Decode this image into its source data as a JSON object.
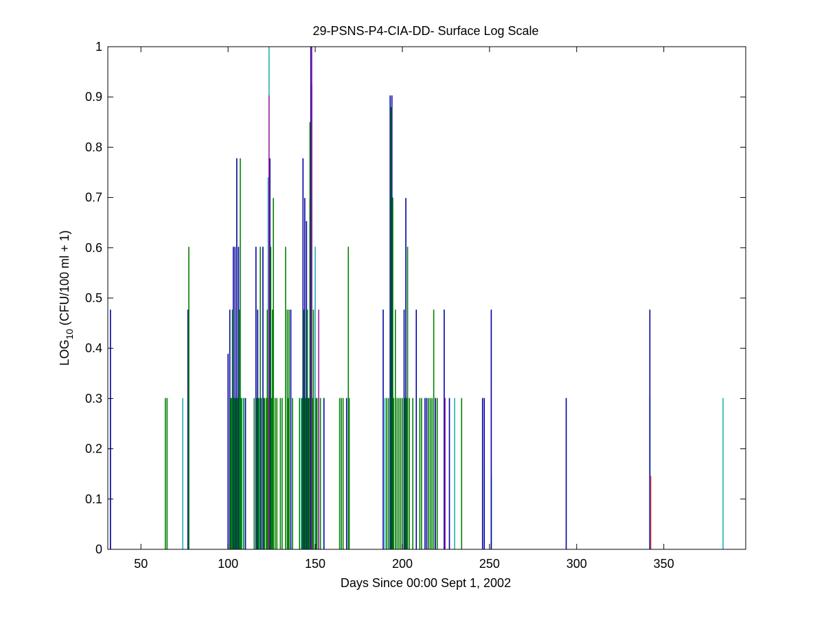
{
  "chart_data": {
    "type": "bar",
    "title": "29-PSNS-P4-CIA-DD- Surface Log Scale",
    "xlabel": "Days Since 00:00 Sept 1, 2002",
    "ylabel_main": "LOG",
    "ylabel_sub": "10",
    "ylabel_rest": " (CFU/100 ml + 1)",
    "xlim": [
      31,
      397
    ],
    "ylim": [
      0,
      1
    ],
    "xticks": [
      50,
      100,
      150,
      200,
      250,
      300,
      350
    ],
    "yticks": [
      0,
      0.1,
      0.2,
      0.3,
      0.4,
      0.5,
      0.6,
      0.7,
      0.8,
      0.9,
      1
    ],
    "grid": false,
    "series": [
      {
        "color": "#20b0b0",
        "points": [
          [
            32.5,
            0.301
          ],
          [
            74,
            0.301
          ],
          [
            104,
            0.477
          ],
          [
            108,
            0.301
          ],
          [
            118,
            0.301
          ],
          [
            123.5,
            1.0
          ],
          [
            123,
            0.74
          ],
          [
            142,
            0.301
          ],
          [
            150,
            0.602
          ],
          [
            190,
            0.301
          ],
          [
            193,
            0.301
          ],
          [
            196,
            0.301
          ],
          [
            230,
            0.301
          ],
          [
            251,
            0.146
          ],
          [
            342,
            0.301
          ],
          [
            384,
            0.301
          ]
        ]
      },
      {
        "color": "#0000a0",
        "points": [
          [
            32.5,
            0.477
          ],
          [
            77,
            0.477
          ],
          [
            100,
            0.389
          ],
          [
            101,
            0.477
          ],
          [
            103,
            0.602
          ],
          [
            104,
            0.602
          ],
          [
            105,
            0.778
          ],
          [
            106,
            0.602
          ],
          [
            110,
            0.301
          ],
          [
            116,
            0.602
          ],
          [
            117,
            0.477
          ],
          [
            119,
            0.301
          ],
          [
            120,
            0.602
          ],
          [
            124,
            0.778
          ],
          [
            136,
            0.477
          ],
          [
            143,
            0.778
          ],
          [
            144,
            0.699
          ],
          [
            145,
            0.653
          ],
          [
            146,
            0.301
          ],
          [
            147,
            0.699
          ],
          [
            147.5,
            1.0
          ],
          [
            148,
            0.924
          ],
          [
            155,
            0.301
          ],
          [
            168,
            0.301
          ],
          [
            189,
            0.477
          ],
          [
            193,
            0.903
          ],
          [
            194,
            0.903
          ],
          [
            201,
            0.477
          ],
          [
            202,
            0.699
          ],
          [
            208,
            0.477
          ],
          [
            213,
            0.301
          ],
          [
            214,
            0.301
          ],
          [
            219,
            0.301
          ],
          [
            224,
            0.477
          ],
          [
            227,
            0.301
          ],
          [
            246,
            0.301
          ],
          [
            247,
            0.301
          ],
          [
            251,
            0.477
          ],
          [
            294,
            0.301
          ],
          [
            342,
            0.477
          ]
        ]
      },
      {
        "color": "#008000",
        "points": [
          [
            64,
            0.301
          ],
          [
            65,
            0.301
          ],
          [
            77.5,
            0.602
          ],
          [
            101.5,
            0.301
          ],
          [
            102,
            0.301
          ],
          [
            102.5,
            0.477
          ],
          [
            103.5,
            0.301
          ],
          [
            104.5,
            0.301
          ],
          [
            105.5,
            0.301
          ],
          [
            106.5,
            0.477
          ],
          [
            107,
            0.778
          ],
          [
            107.5,
            0.301
          ],
          [
            109,
            0.301
          ],
          [
            115,
            0.301
          ],
          [
            116.5,
            0.301
          ],
          [
            117.5,
            0.301
          ],
          [
            118.5,
            0.602
          ],
          [
            120.5,
            0.301
          ],
          [
            121,
            0.301
          ],
          [
            122,
            0.301
          ],
          [
            122.5,
            0.477
          ],
          [
            123,
            0.301
          ],
          [
            124.5,
            0.602
          ],
          [
            125,
            0.301
          ],
          [
            125.5,
            0.477
          ],
          [
            126,
            0.699
          ],
          [
            127,
            0.301
          ],
          [
            128,
            0.301
          ],
          [
            130,
            0.301
          ],
          [
            131,
            0.301
          ],
          [
            133,
            0.602
          ],
          [
            134,
            0.477
          ],
          [
            134.5,
            0.301
          ],
          [
            135,
            0.477
          ],
          [
            137,
            0.301
          ],
          [
            141,
            0.301
          ],
          [
            142.5,
            0.301
          ],
          [
            143.5,
            0.477
          ],
          [
            144.5,
            0.301
          ],
          [
            145.5,
            0.477
          ],
          [
            146.5,
            0.301
          ],
          [
            147,
            0.85
          ],
          [
            148.5,
            0.301
          ],
          [
            149,
            0.477
          ],
          [
            150.5,
            0.301
          ],
          [
            151,
            0.301
          ],
          [
            152,
            0.301
          ],
          [
            153,
            0.301
          ],
          [
            164,
            0.301
          ],
          [
            165,
            0.301
          ],
          [
            166,
            0.301
          ],
          [
            169,
            0.602
          ],
          [
            169.5,
            0.301
          ],
          [
            191,
            0.301
          ],
          [
            192,
            0.301
          ],
          [
            193.5,
            0.88
          ],
          [
            194.5,
            0.7
          ],
          [
            195,
            0.301
          ],
          [
            196,
            0.477
          ],
          [
            197,
            0.301
          ],
          [
            198,
            0.301
          ],
          [
            199,
            0.301
          ],
          [
            200,
            0.301
          ],
          [
            201.5,
            0.301
          ],
          [
            202.5,
            0.301
          ],
          [
            203,
            0.602
          ],
          [
            204,
            0.301
          ],
          [
            206,
            0.301
          ],
          [
            210,
            0.301
          ],
          [
            211,
            0.301
          ],
          [
            215,
            0.301
          ],
          [
            216,
            0.301
          ],
          [
            217,
            0.301
          ],
          [
            218,
            0.477
          ],
          [
            220,
            0.301
          ],
          [
            234,
            0.301
          ]
        ]
      },
      {
        "color": "#a020a0",
        "points": [
          [
            123.5,
            0.903
          ],
          [
            148,
            1.0
          ],
          [
            152,
            0.477
          ],
          [
            224.5,
            0.301
          ]
        ]
      },
      {
        "color": "#d04040",
        "points": [
          [
            342.5,
            0.146
          ]
        ]
      }
    ]
  }
}
